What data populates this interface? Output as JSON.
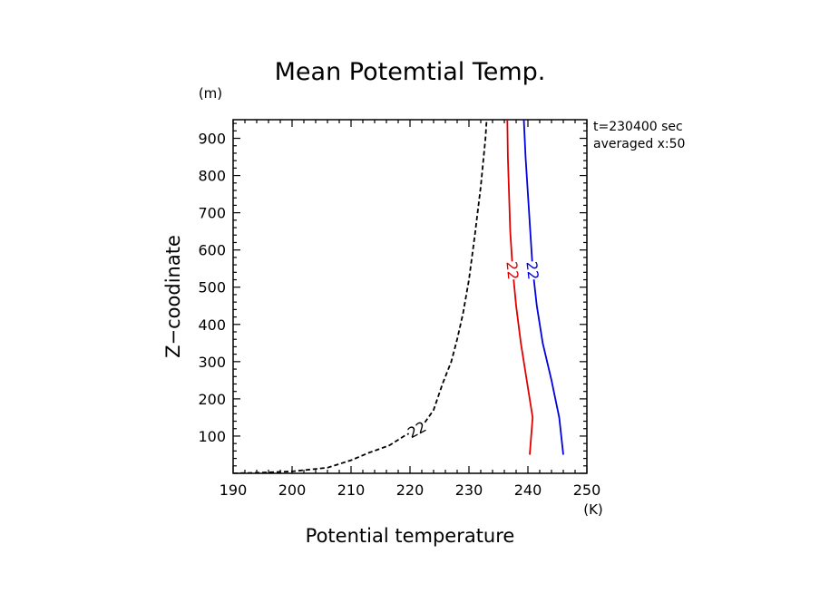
{
  "chart_data": {
    "type": "line",
    "title": "Mean Potemtial Temp.",
    "xlabel": "Potential temperature",
    "ylabel": "Z−coodinate",
    "x_unit": "(K)",
    "y_unit": "(m)",
    "xlim": [
      190,
      250
    ],
    "ylim": [
      0,
      950
    ],
    "xticks": [
      190,
      200,
      210,
      220,
      230,
      240,
      250
    ],
    "yticks": [
      100,
      200,
      300,
      400,
      500,
      600,
      700,
      800,
      900
    ],
    "annotations": [
      "t=230400 sec",
      "averaged  x:50"
    ],
    "series": [
      {
        "color": "#000000",
        "dash": true,
        "label": "22",
        "points": [
          [
            190,
            0
          ],
          [
            195,
            2
          ],
          [
            200,
            5
          ],
          [
            206,
            15
          ],
          [
            210,
            35
          ],
          [
            213,
            55
          ],
          [
            216.5,
            75
          ],
          [
            219,
            100
          ],
          [
            222,
            125
          ],
          [
            224,
            170
          ],
          [
            225.5,
            240
          ],
          [
            227,
            300
          ],
          [
            228,
            360
          ],
          [
            229,
            430
          ],
          [
            230,
            520
          ],
          [
            231,
            640
          ],
          [
            232,
            770
          ],
          [
            232.8,
            900
          ],
          [
            233,
            950
          ]
        ]
      },
      {
        "color": "#e00000",
        "dash": false,
        "label": "22",
        "points": [
          [
            240.3,
            50
          ],
          [
            240.8,
            150
          ],
          [
            239.8,
            250
          ],
          [
            238.8,
            350
          ],
          [
            238,
            450
          ],
          [
            237.4,
            550
          ],
          [
            237,
            650
          ],
          [
            236.8,
            750
          ],
          [
            236.6,
            850
          ],
          [
            236.5,
            950
          ]
        ]
      },
      {
        "color": "#0000e0",
        "dash": false,
        "label": "22",
        "points": [
          [
            246,
            50
          ],
          [
            245.3,
            150
          ],
          [
            244,
            250
          ],
          [
            242.5,
            350
          ],
          [
            241.5,
            450
          ],
          [
            240.8,
            550
          ],
          [
            240.4,
            650
          ],
          [
            240,
            750
          ],
          [
            239.6,
            850
          ],
          [
            239.3,
            950
          ]
        ]
      }
    ]
  }
}
